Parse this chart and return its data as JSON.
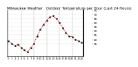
{
  "title": "Milwaukee Weather   Outdoor Temperature per Hour (Last 24 Hours)",
  "hours": [
    0,
    1,
    2,
    3,
    4,
    5,
    6,
    7,
    8,
    9,
    10,
    11,
    12,
    13,
    14,
    15,
    16,
    17,
    18,
    19,
    20,
    21,
    22,
    23
  ],
  "temps": [
    38,
    35,
    32,
    34,
    30,
    27,
    25,
    30,
    35,
    44,
    52,
    58,
    63,
    67,
    68,
    65,
    60,
    54,
    48,
    44,
    43,
    40,
    38,
    36
  ],
  "line_color": "#cc0000",
  "marker_color": "#000000",
  "bg_color": "#ffffff",
  "grid_color": "#888888",
  "ylim": [
    20,
    75
  ],
  "ytick_values": [
    75,
    70,
    65,
    60,
    55,
    50,
    45,
    40,
    35
  ],
  "title_fontsize": 3.8,
  "tick_fontsize": 3.0,
  "xlabel_fontsize": 2.8
}
